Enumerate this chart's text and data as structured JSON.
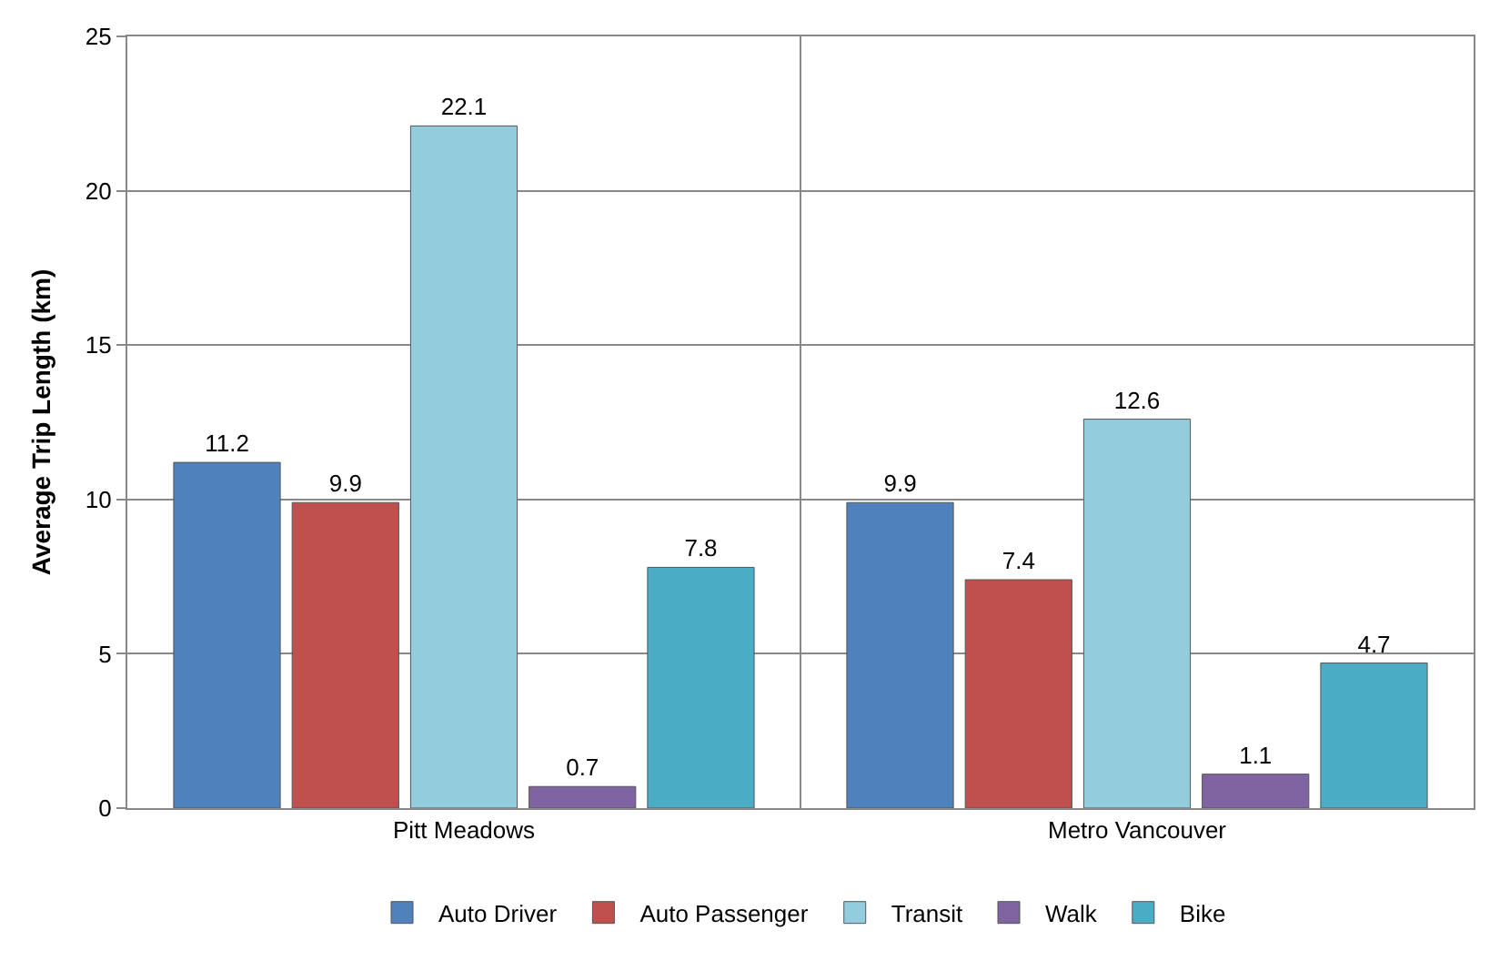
{
  "chart_data": {
    "type": "bar",
    "ylabel": "Average Trip Length (km)",
    "categories": [
      "Pitt Meadows",
      "Metro Vancouver"
    ],
    "series": [
      {
        "name": "Auto Driver",
        "color": "#4f81bd",
        "values": [
          11.2,
          9.9
        ]
      },
      {
        "name": "Auto Passenger",
        "color": "#c0504d",
        "values": [
          9.9,
          7.4
        ]
      },
      {
        "name": "Transit",
        "color": "#93cddd",
        "values": [
          22.1,
          12.6
        ]
      },
      {
        "name": "Walk",
        "color": "#8064a2",
        "values": [
          0.7,
          1.1
        ]
      },
      {
        "name": "Bike",
        "color": "#4bacc6",
        "values": [
          7.8,
          4.7
        ]
      }
    ],
    "ylim": [
      0,
      25
    ],
    "yticks": [
      0,
      5,
      10,
      15,
      20,
      25
    ],
    "grid": true,
    "legend": "bottom",
    "data_labels": true
  }
}
